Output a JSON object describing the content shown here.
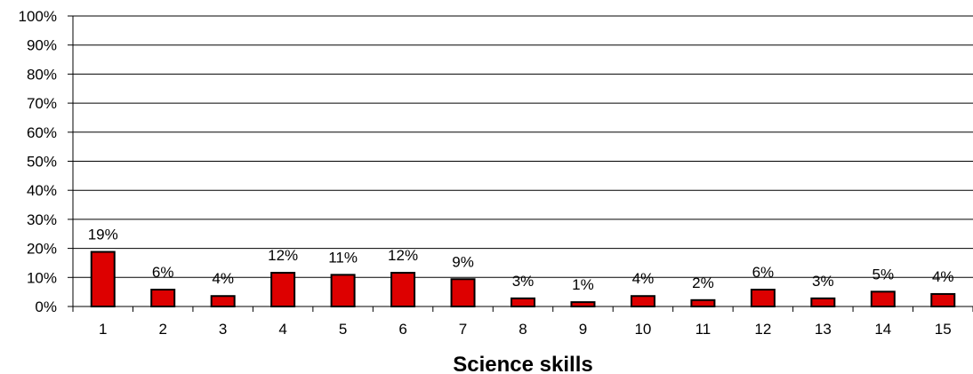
{
  "chart_data": {
    "type": "bar",
    "title": "",
    "xlabel": "Science skills",
    "ylabel": "",
    "categories": [
      "1",
      "2",
      "3",
      "4",
      "5",
      "6",
      "7",
      "8",
      "9",
      "10",
      "11",
      "12",
      "13",
      "14",
      "15"
    ],
    "values": [
      19,
      6,
      4,
      12,
      11,
      12,
      9,
      3,
      1,
      4,
      2,
      6,
      3,
      5,
      4
    ],
    "value_labels": [
      "19%",
      "6%",
      "4%",
      "12%",
      "11%",
      "12%",
      "9%",
      "3%",
      "1%",
      "4%",
      "2%",
      "6%",
      "3%",
      "5%",
      "4%"
    ],
    "values_precise": [
      18.8,
      5.8,
      3.6,
      11.6,
      10.9,
      11.6,
      9.4,
      2.8,
      1.5,
      3.6,
      2.2,
      5.8,
      2.8,
      5.1,
      4.3
    ],
    "ylim": [
      0,
      100
    ],
    "yticks": [
      0,
      10,
      20,
      30,
      40,
      50,
      60,
      70,
      80,
      90,
      100
    ],
    "ytick_labels": [
      "0%",
      "10%",
      "20%",
      "30%",
      "40%",
      "50%",
      "60%",
      "70%",
      "80%",
      "90%",
      "100%"
    ],
    "grid": true,
    "legend": "none",
    "bar_color": "#dd0000",
    "bar_edge_color": "#000000"
  }
}
